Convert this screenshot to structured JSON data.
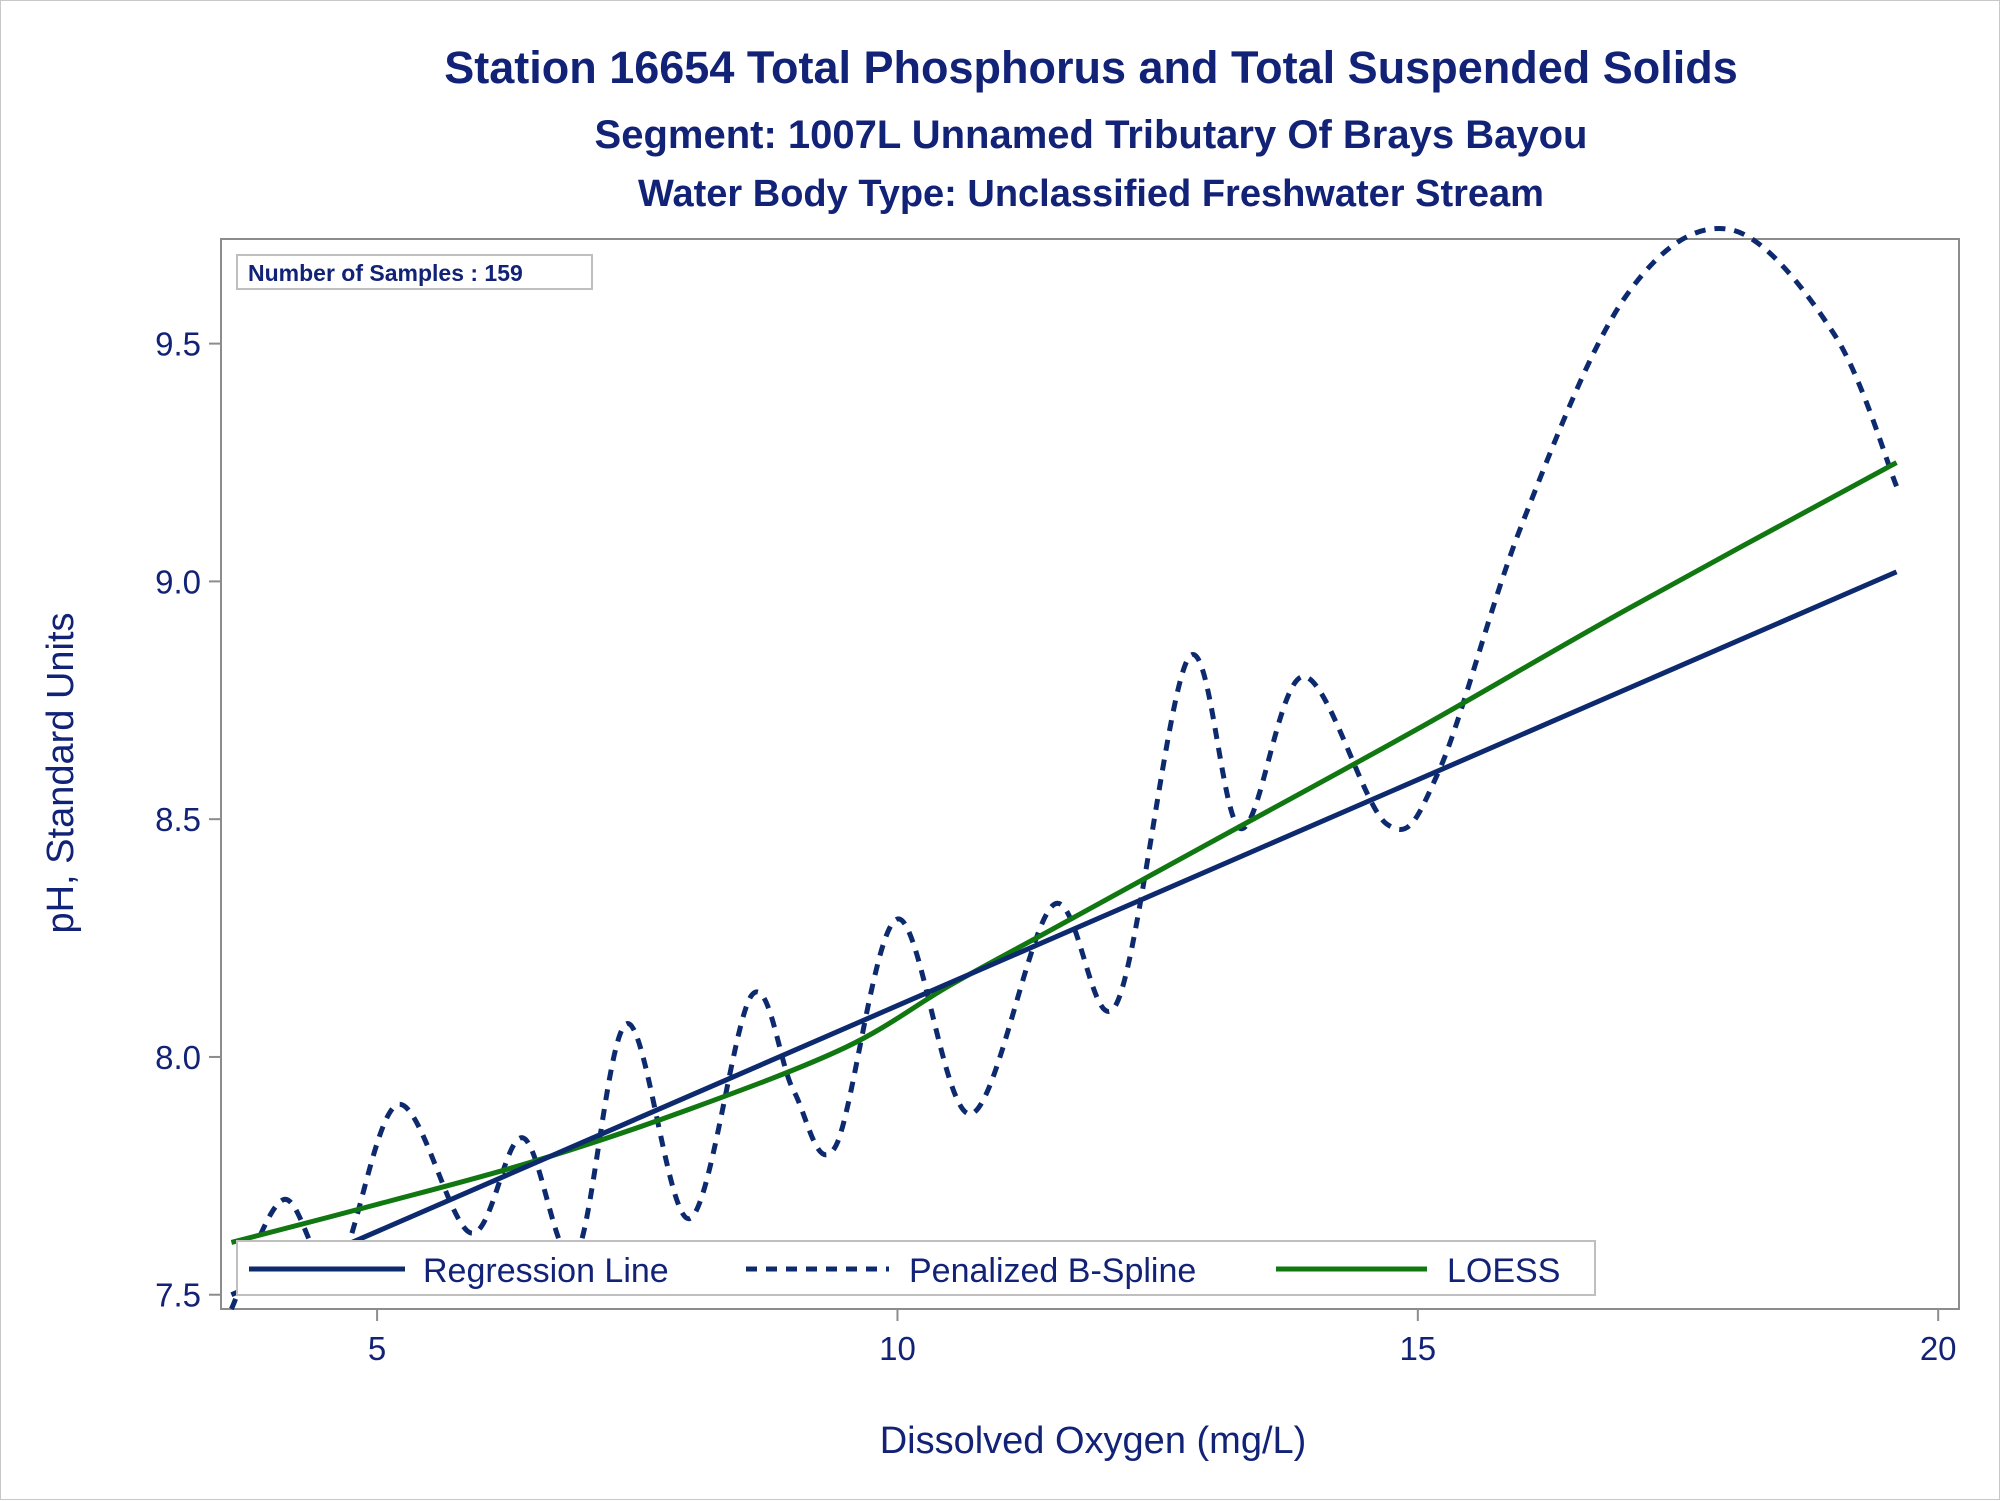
{
  "chart_data": {
    "type": "line",
    "title": "Station 16654  Total Phosphorus and Total Suspended Solids",
    "subtitle": "Segment: 1007L  Unnamed Tributary Of Brays Bayou",
    "subtitle2": "Water Body Type: Unclassified Freshwater Stream",
    "xlabel": "Dissolved Oxygen (mg/L)",
    "ylabel": "pH, Standard Units",
    "xlim": [
      3.5,
      20.2
    ],
    "ylim": [
      7.47,
      9.72
    ],
    "xticks": [
      5,
      10,
      15,
      20
    ],
    "xtick_labels": [
      "5",
      "10",
      "15",
      "20"
    ],
    "yticks": [
      7.5,
      8.0,
      8.5,
      9.0,
      9.5
    ],
    "ytick_labels": [
      "7.5",
      "8.0",
      "8.5",
      "9.0",
      "9.5"
    ],
    "grid": false,
    "legend_position": "bottom",
    "inset_label": "Number of Samples : 159",
    "series": [
      {
        "name": "Regression Line",
        "style": "solid",
        "color": "#0d2a6e",
        "x": [
          3.6,
          19.6
        ],
        "y": [
          7.5,
          9.02
        ]
      },
      {
        "name": "Penalized B-Spline",
        "style": "dashed",
        "color": "#0d2a6e",
        "x": [
          3.6,
          4.1,
          4.6,
          5.2,
          5.9,
          6.4,
          6.9,
          7.4,
          8.0,
          8.6,
          9.0,
          9.4,
          10.0,
          10.7,
          11.5,
          12.1,
          12.8,
          13.3,
          13.9,
          14.7,
          15.2,
          16.0,
          17.0,
          18.0,
          19.0,
          19.6
        ],
        "y": [
          7.47,
          7.7,
          7.55,
          7.9,
          7.63,
          7.83,
          7.58,
          8.07,
          7.66,
          8.13,
          7.93,
          7.81,
          8.29,
          7.88,
          8.32,
          8.11,
          8.84,
          8.48,
          8.8,
          8.49,
          8.6,
          9.12,
          9.6,
          9.74,
          9.52,
          9.2
        ]
      },
      {
        "name": "LOESS",
        "style": "solid",
        "color": "#117711",
        "x": [
          3.6,
          5.0,
          6.5,
          8.0,
          9.5,
          10.5,
          11.5,
          13.0,
          15.0,
          17.0,
          19.6
        ],
        "y": [
          7.61,
          7.69,
          7.78,
          7.89,
          8.02,
          8.15,
          8.27,
          8.45,
          8.69,
          8.94,
          9.25
        ]
      }
    ]
  }
}
